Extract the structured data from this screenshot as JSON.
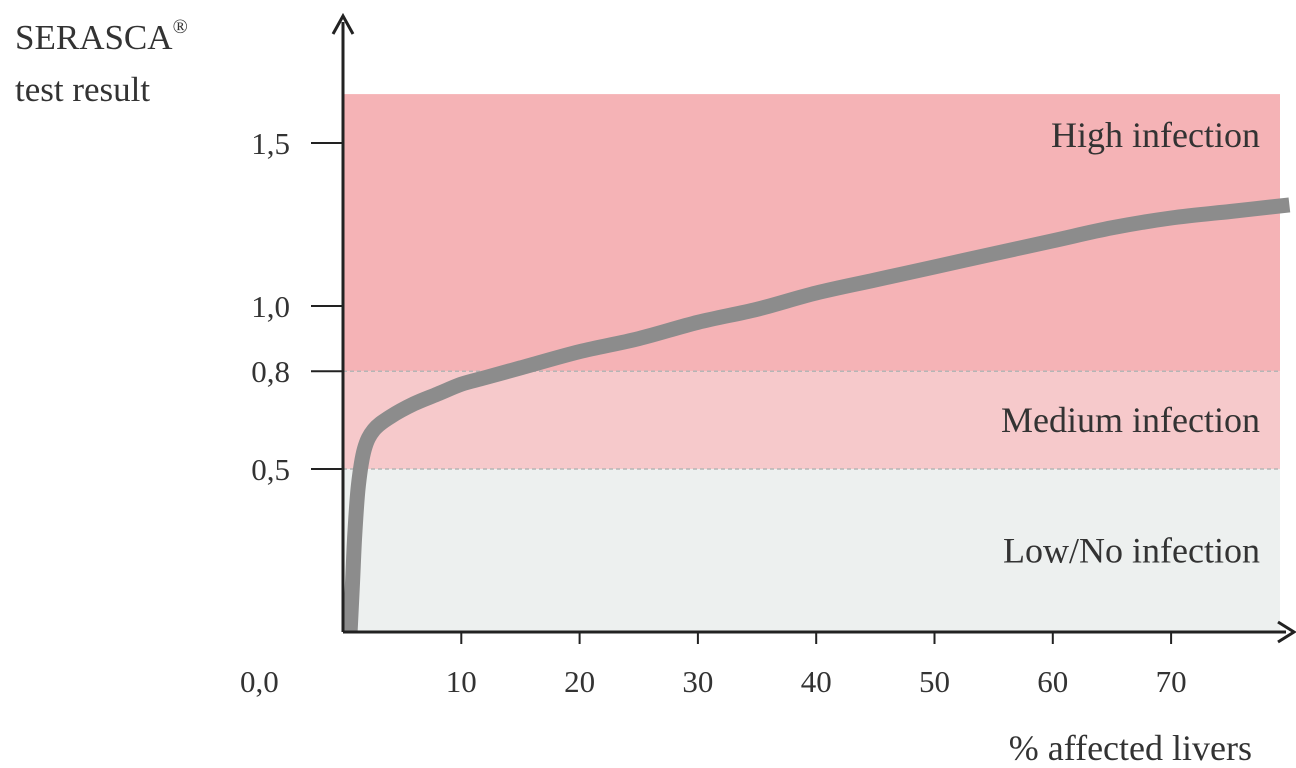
{
  "chart_data": {
    "type": "line",
    "ylabel_line1": "SERASCA",
    "ylabel_mark": "®",
    "ylabel_line2": "test result",
    "xlabel": "% affected livers",
    "x_ticks": [
      "10",
      "20",
      "30",
      "40",
      "50",
      "60",
      "70"
    ],
    "y_ticks": [
      {
        "value": 1.5,
        "label": "1,5"
      },
      {
        "value": 1.0,
        "label": "1,0"
      },
      {
        "value": 0.8,
        "label": "0,8"
      },
      {
        "value": 0.5,
        "label": "0,5"
      }
    ],
    "origin_label": "0,0",
    "xlim": [
      0,
      80
    ],
    "ylim": [
      0,
      1.65
    ],
    "zones": [
      {
        "name": "Low/No infection",
        "from": 0.0,
        "to": 0.5,
        "color": "#edf0ef"
      },
      {
        "name": "Medium infection",
        "from": 0.5,
        "to": 0.8,
        "color": "#f6c9cb"
      },
      {
        "name": "High infection",
        "from": 0.8,
        "to": 1.65,
        "color": "#f5b3b6"
      }
    ],
    "series": [
      {
        "color": "#8c8c8c",
        "points": [
          [
            0.6,
            0.0
          ],
          [
            0.8,
            0.15
          ],
          [
            1.0,
            0.3
          ],
          [
            1.3,
            0.45
          ],
          [
            1.8,
            0.56
          ],
          [
            2.6,
            0.62
          ],
          [
            4,
            0.66
          ],
          [
            6,
            0.7
          ],
          [
            8,
            0.73
          ],
          [
            10,
            0.76
          ],
          [
            12,
            0.78
          ],
          [
            15,
            0.81
          ],
          [
            20,
            0.86
          ],
          [
            25,
            0.9
          ],
          [
            30,
            0.95
          ],
          [
            35,
            0.99
          ],
          [
            40,
            1.04
          ],
          [
            45,
            1.08
          ],
          [
            50,
            1.12
          ],
          [
            55,
            1.16
          ],
          [
            60,
            1.2
          ],
          [
            65,
            1.24
          ],
          [
            70,
            1.27
          ],
          [
            75,
            1.29
          ],
          [
            80,
            1.31
          ]
        ]
      }
    ]
  }
}
